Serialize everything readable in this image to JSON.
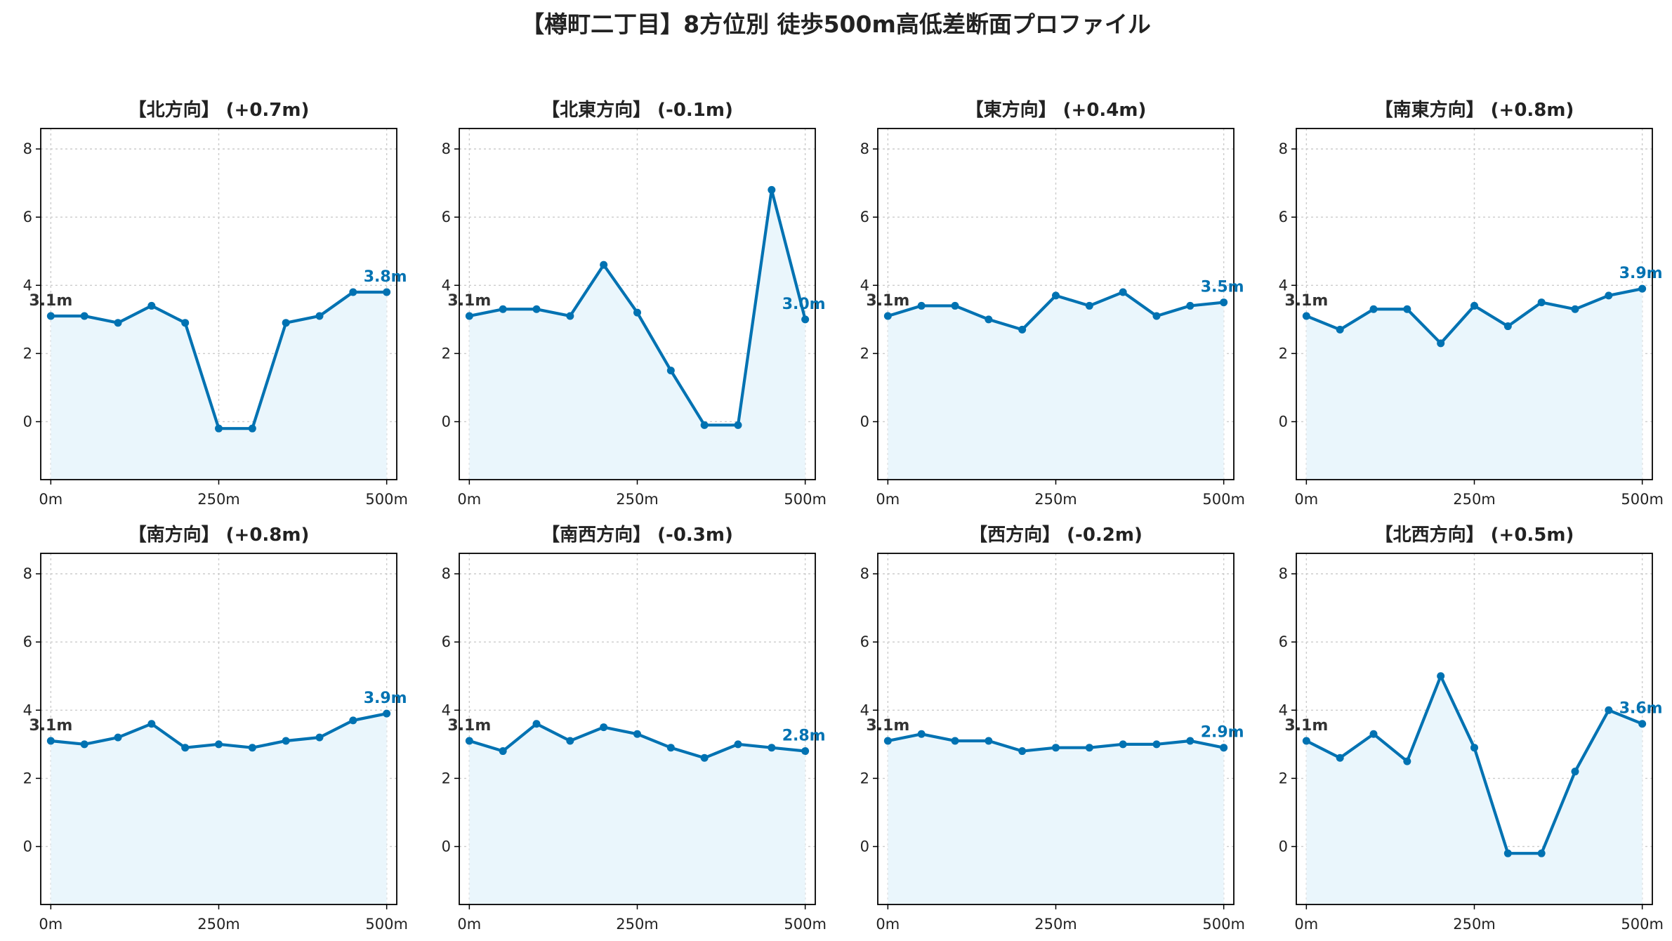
{
  "title": "【樽町二丁目】8方位別 徒歩500m高低差断面プロファイル",
  "colors": {
    "line": "#0072B2",
    "fill": "#EAF6FC",
    "grid": "#cccccc"
  },
  "chart_data": [
    {
      "type": "line",
      "title": "【北方向】 (+0.7m)",
      "x": [
        0,
        50,
        100,
        150,
        200,
        250,
        300,
        350,
        400,
        450,
        500
      ],
      "values": [
        3.1,
        3.1,
        2.9,
        3.4,
        2.9,
        -0.2,
        -0.2,
        2.9,
        3.1,
        3.8,
        3.8
      ],
      "start_label": "3.1m",
      "end_label": "3.8m",
      "x_ticks": [
        "0m",
        "250m",
        "500m"
      ],
      "y_ticks": [
        0,
        2,
        4,
        6,
        8
      ],
      "ylim": [
        -1.7,
        8.6
      ],
      "xlim": [
        -15,
        515
      ],
      "grid": true
    },
    {
      "type": "line",
      "title": "【北東方向】 (-0.1m)",
      "x": [
        0,
        50,
        100,
        150,
        200,
        250,
        300,
        350,
        400,
        450,
        500
      ],
      "values": [
        3.1,
        3.3,
        3.3,
        3.1,
        4.6,
        3.2,
        1.5,
        -0.1,
        -0.1,
        6.8,
        3.0
      ],
      "start_label": "3.1m",
      "end_label": "3.0m",
      "x_ticks": [
        "0m",
        "250m",
        "500m"
      ],
      "y_ticks": [
        0,
        2,
        4,
        6,
        8
      ],
      "ylim": [
        -1.7,
        8.6
      ],
      "xlim": [
        -15,
        515
      ],
      "grid": true
    },
    {
      "type": "line",
      "title": "【東方向】 (+0.4m)",
      "x": [
        0,
        50,
        100,
        150,
        200,
        250,
        300,
        350,
        400,
        450,
        500
      ],
      "values": [
        3.1,
        3.4,
        3.4,
        3.0,
        2.7,
        3.7,
        3.4,
        3.8,
        3.1,
        3.4,
        3.5
      ],
      "start_label": "3.1m",
      "end_label": "3.5m",
      "x_ticks": [
        "0m",
        "250m",
        "500m"
      ],
      "y_ticks": [
        0,
        2,
        4,
        6,
        8
      ],
      "ylim": [
        -1.7,
        8.6
      ],
      "xlim": [
        -15,
        515
      ],
      "grid": true
    },
    {
      "type": "line",
      "title": "【南東方向】 (+0.8m)",
      "x": [
        0,
        50,
        100,
        150,
        200,
        250,
        300,
        350,
        400,
        450,
        500
      ],
      "values": [
        3.1,
        2.7,
        3.3,
        3.3,
        2.3,
        3.4,
        2.8,
        3.5,
        3.3,
        3.7,
        3.9
      ],
      "start_label": "3.1m",
      "end_label": "3.9m",
      "x_ticks": [
        "0m",
        "250m",
        "500m"
      ],
      "y_ticks": [
        0,
        2,
        4,
        6,
        8
      ],
      "ylim": [
        -1.7,
        8.6
      ],
      "xlim": [
        -15,
        515
      ],
      "grid": true
    },
    {
      "type": "line",
      "title": "【南方向】 (+0.8m)",
      "x": [
        0,
        50,
        100,
        150,
        200,
        250,
        300,
        350,
        400,
        450,
        500
      ],
      "values": [
        3.1,
        3.0,
        3.2,
        3.6,
        2.9,
        3.0,
        2.9,
        3.1,
        3.2,
        3.7,
        3.9
      ],
      "start_label": "3.1m",
      "end_label": "3.9m",
      "x_ticks": [
        "0m",
        "250m",
        "500m"
      ],
      "y_ticks": [
        0,
        2,
        4,
        6,
        8
      ],
      "ylim": [
        -1.7,
        8.6
      ],
      "xlim": [
        -15,
        515
      ],
      "grid": true
    },
    {
      "type": "line",
      "title": "【南西方向】 (-0.3m)",
      "x": [
        0,
        50,
        100,
        150,
        200,
        250,
        300,
        350,
        400,
        450,
        500
      ],
      "values": [
        3.1,
        2.8,
        3.6,
        3.1,
        3.5,
        3.3,
        2.9,
        2.6,
        3.0,
        2.9,
        2.8
      ],
      "start_label": "3.1m",
      "end_label": "2.8m",
      "x_ticks": [
        "0m",
        "250m",
        "500m"
      ],
      "y_ticks": [
        0,
        2,
        4,
        6,
        8
      ],
      "ylim": [
        -1.7,
        8.6
      ],
      "xlim": [
        -15,
        515
      ],
      "grid": true
    },
    {
      "type": "line",
      "title": "【西方向】 (-0.2m)",
      "x": [
        0,
        50,
        100,
        150,
        200,
        250,
        300,
        350,
        400,
        450,
        500
      ],
      "values": [
        3.1,
        3.3,
        3.1,
        3.1,
        2.8,
        2.9,
        2.9,
        3.0,
        3.0,
        3.1,
        2.9
      ],
      "start_label": "3.1m",
      "end_label": "2.9m",
      "x_ticks": [
        "0m",
        "250m",
        "500m"
      ],
      "y_ticks": [
        0,
        2,
        4,
        6,
        8
      ],
      "ylim": [
        -1.7,
        8.6
      ],
      "xlim": [
        -15,
        515
      ],
      "grid": true
    },
    {
      "type": "line",
      "title": "【北西方向】 (+0.5m)",
      "x": [
        0,
        50,
        100,
        150,
        200,
        250,
        300,
        350,
        400,
        450,
        500
      ],
      "values": [
        3.1,
        2.6,
        3.3,
        2.5,
        5.0,
        2.9,
        -0.2,
        -0.2,
        2.2,
        4.0,
        3.6
      ],
      "start_label": "3.1m",
      "end_label": "3.6m",
      "x_ticks": [
        "0m",
        "250m",
        "500m"
      ],
      "y_ticks": [
        0,
        2,
        4,
        6,
        8
      ],
      "ylim": [
        -1.7,
        8.6
      ],
      "xlim": [
        -15,
        515
      ],
      "grid": true
    }
  ]
}
